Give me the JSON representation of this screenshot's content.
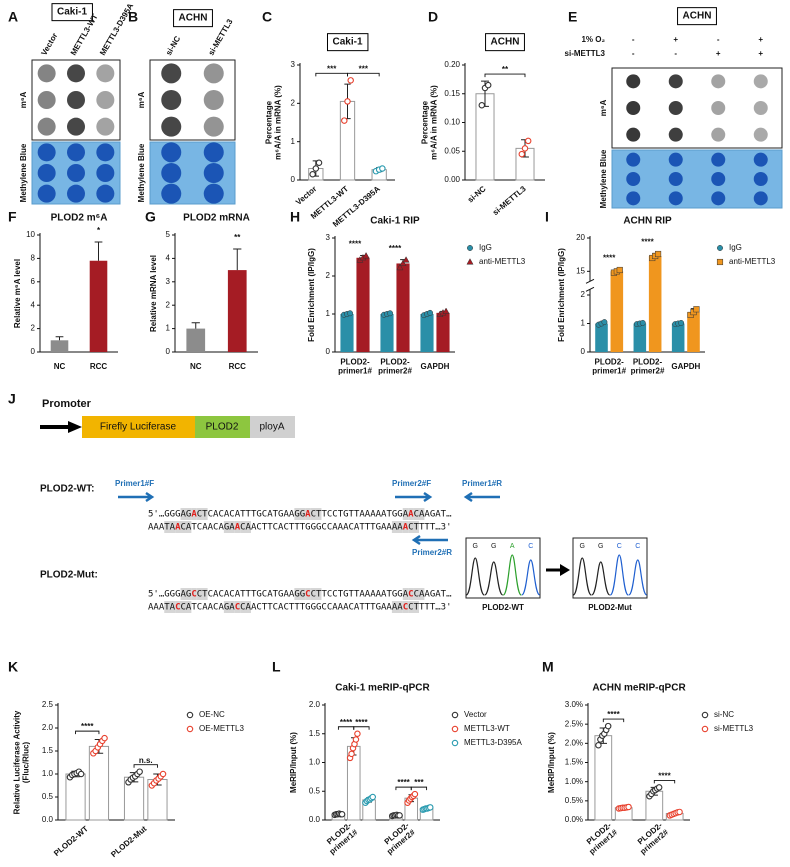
{
  "chart_data": [
    {
      "panel": "C",
      "type": "bar",
      "title": "Caki-1",
      "title_boxed": true,
      "ylabel": "Percentage\nm⁶A/A in mRNA (%)",
      "categories": [
        "Vector",
        "METTL3-WT",
        "METTL3-D395A"
      ],
      "values": [
        0.3,
        2.05,
        0.27
      ],
      "errors": [
        0.2,
        0.45,
        0.05
      ],
      "points": [
        [
          0.15,
          0.3,
          0.45
        ],
        [
          1.55,
          2.05,
          2.6
        ],
        [
          0.23,
          0.27,
          0.3
        ]
      ],
      "colors": [
        "#333333",
        "#e8412e",
        "#2a9bb0"
      ],
      "marker": "circle",
      "bar_style": "open",
      "ylim": [
        0,
        3
      ],
      "yticks": [
        0,
        1,
        2,
        3
      ],
      "xlabel_rotate": true,
      "significance": [
        {
          "label": "***",
          "groups": [
            0,
            1
          ]
        },
        {
          "label": "***",
          "groups": [
            1,
            2
          ]
        }
      ]
    },
    {
      "panel": "D",
      "type": "bar",
      "title": "ACHN",
      "title_boxed": true,
      "ylabel": "Percentage\nm⁶A/A in mRNA (%)",
      "categories": [
        "si-NC",
        "si-METTL3"
      ],
      "values": [
        0.15,
        0.055
      ],
      "errors": [
        0.022,
        0.015
      ],
      "points": [
        [
          0.13,
          0.16,
          0.165
        ],
        [
          0.045,
          0.055,
          0.068
        ]
      ],
      "colors": [
        "#333333",
        "#e8412e"
      ],
      "marker": "circle",
      "bar_style": "open",
      "ylim": [
        0,
        0.2
      ],
      "yticks": [
        {
          "value": 0,
          "label": "0.00"
        },
        {
          "value": 0.05,
          "label": "0.05"
        },
        {
          "value": 0.1,
          "label": "0.10"
        },
        {
          "value": 0.15,
          "label": "0.15"
        },
        {
          "value": 0.2,
          "label": "0.20"
        }
      ],
      "xlabel_rotate": true,
      "significance": [
        {
          "label": "**",
          "groups": [
            0,
            1
          ]
        }
      ]
    },
    {
      "panel": "F",
      "type": "bar",
      "title": "PLOD2 m⁶A",
      "ylabel": "Relative m⁶A level",
      "categories": [
        "NC",
        "RCC"
      ],
      "values": [
        1,
        7.8
      ],
      "errors": [
        0.3,
        1.6
      ],
      "colors": [
        "#8c8c8c",
        "#a51c24"
      ],
      "bar_style": "solid",
      "ylim": [
        0,
        10
      ],
      "yticks": [
        0,
        2,
        4,
        6,
        8,
        10
      ],
      "significance": [
        {
          "label": "*",
          "category": 1
        }
      ]
    },
    {
      "panel": "G",
      "type": "bar",
      "title": "PLOD2 mRNA",
      "ylabel": "Relative mRNA level",
      "categories": [
        "NC",
        "RCC"
      ],
      "values": [
        1,
        3.5
      ],
      "errors": [
        0.25,
        0.9
      ],
      "colors": [
        "#8c8c8c",
        "#a51c24"
      ],
      "bar_style": "solid",
      "ylim": [
        0,
        5
      ],
      "yticks": [
        0,
        1,
        2,
        3,
        4,
        5
      ],
      "significance": [
        {
          "label": "**",
          "category": 1
        }
      ]
    },
    {
      "panel": "H",
      "type": "bar",
      "title": "Caki-1 RIP",
      "ylabel": "Fold Enrichment (IP/IgG)",
      "categories": [
        "PLOD2-\nprimer1#",
        "PLOD2-\nprimer2#",
        "GAPDH"
      ],
      "bar_style": "solid",
      "legend": "upper right",
      "series": [
        {
          "name": "IgG",
          "color": "#2a8fa8",
          "marker": "circle",
          "values": [
            1,
            1,
            1
          ],
          "errors": [
            0.03,
            0.03,
            0.03
          ],
          "points": [
            [
              0.98,
              1,
              1.02
            ],
            [
              0.98,
              1,
              1.02
            ],
            [
              0.97,
              1,
              1.03
            ]
          ]
        },
        {
          "name": "anti-METTL3",
          "color": "#a51c24",
          "marker": "triangle",
          "values": [
            2.48,
            2.33,
            1.03
          ],
          "errors": [
            0.06,
            0.1,
            0.04
          ],
          "points": [
            [
              2.42,
              2.48,
              2.53
            ],
            [
              2.22,
              2.33,
              2.42
            ],
            [
              0.99,
              1.03,
              1.07
            ]
          ]
        }
      ],
      "ylim": [
        0,
        3
      ],
      "yticks": [
        0,
        1,
        2,
        3
      ],
      "significance": [
        {
          "label": "****",
          "category": 0
        },
        {
          "label": "****",
          "category": 1
        }
      ]
    },
    {
      "panel": "I",
      "type": "bar",
      "title": "ACHN RIP",
      "ylabel": "Fold Enrichment (IP/IgG)",
      "categories": [
        "PLOD2-\nprimer1#",
        "PLOD2-\nprimer2#",
        "GAPDH"
      ],
      "bar_style": "solid",
      "legend": "upper right",
      "series": [
        {
          "name": "IgG",
          "color": "#2a8fa8",
          "marker": "circle",
          "values": [
            1,
            1,
            1
          ],
          "errors": [
            0.05,
            0.03,
            0.03
          ],
          "points": [
            [
              0.96,
              1,
              1.05
            ],
            [
              0.98,
              1,
              1.02
            ],
            [
              0.98,
              1,
              1.02
            ]
          ]
        },
        {
          "name": "anti-METTL3",
          "color": "#f0961e",
          "marker": "square",
          "values": [
            15,
            17.3,
            1.4
          ],
          "errors": [
            0.3,
            0.4,
            0.12
          ],
          "points": [
            [
              14.8,
              15,
              15.2
            ],
            [
              17,
              17.3,
              17.6
            ],
            [
              1.3,
              1.4,
              1.5
            ]
          ]
        }
      ],
      "ylim": [
        0,
        20
      ],
      "ybreak": [
        2.2,
        13.5
      ],
      "yticks": [
        0,
        1,
        2,
        15,
        20
      ],
      "significance": [
        {
          "label": "****",
          "category": 0
        },
        {
          "label": "****",
          "category": 1
        }
      ]
    },
    {
      "panel": "K",
      "type": "bar",
      "ylabel": "Relative Luciferase Activity\n(Fluc/Rluc)",
      "categories": [
        "PLOD2-WT",
        "PLOD2-Mut"
      ],
      "bar_style": "open",
      "legend": "upper right",
      "xlabel_rotate": true,
      "series": [
        {
          "name": "OE-NC",
          "color": "#333333",
          "marker": "circle",
          "values": [
            1,
            0.93
          ],
          "errors": [
            0.06,
            0.1
          ],
          "points": [
            [
              0.93,
              0.98,
              1,
              1.02,
              1.05,
              1
            ],
            [
              0.82,
              0.88,
              0.92,
              0.95,
              1,
              1.05
            ]
          ]
        },
        {
          "name": "OE-METTL3",
          "color": "#e8412e",
          "marker": "circle",
          "values": [
            1.6,
            0.88
          ],
          "errors": [
            0.15,
            0.12
          ],
          "points": [
            [
              1.45,
              1.5,
              1.58,
              1.65,
              1.72,
              1.78
            ],
            [
              0.75,
              0.8,
              0.86,
              0.9,
              0.95,
              1
            ]
          ]
        }
      ],
      "ylim": [
        0,
        2.5
      ],
      "yticks": [
        {
          "value": 0,
          "label": "0.0"
        },
        0.5,
        {
          "value": 1,
          "label": "1.0"
        },
        1.5,
        {
          "value": 2,
          "label": "2.0"
        },
        2.5
      ],
      "significance": [
        {
          "label": "****",
          "category": 0,
          "series": [
            0,
            1
          ]
        },
        {
          "label": "n.s.",
          "category": 1,
          "series": [
            0,
            1
          ]
        }
      ]
    },
    {
      "panel": "L",
      "type": "bar",
      "title": "Caki-1 meRIP-qPCR",
      "ylabel": "MeRIP/Input (%)",
      "categories": [
        "PLOD2-\nprimer1#",
        "PLOD2-\nprimer2#"
      ],
      "bar_style": "open",
      "legend": "upper right",
      "xlabel_rotate": true,
      "series": [
        {
          "name": "Vector",
          "color": "#333333",
          "marker": "circle",
          "values": [
            0.1,
            0.08
          ],
          "errors": [
            0.01,
            0.01
          ],
          "points": [
            [
              0.09,
              0.1,
              0.1,
              0.11,
              0.1,
              0.1
            ],
            [
              0.07,
              0.08,
              0.08,
              0.09,
              0.08,
              0.08
            ]
          ]
        },
        {
          "name": "METTL3-WT",
          "color": "#e8412e",
          "marker": "circle",
          "values": [
            1.28,
            0.38
          ],
          "errors": [
            0.15,
            0.06
          ],
          "points": [
            [
              1.08,
              1.15,
              1.25,
              1.32,
              1.4,
              1.5
            ],
            [
              0.3,
              0.34,
              0.37,
              0.4,
              0.42,
              0.45
            ]
          ]
        },
        {
          "name": "METTL3-D395A",
          "color": "#2a9bb0",
          "marker": "circle",
          "values": [
            0.35,
            0.2
          ],
          "errors": [
            0.04,
            0.02
          ],
          "points": [
            [
              0.3,
              0.33,
              0.35,
              0.36,
              0.38,
              0.4
            ],
            [
              0.18,
              0.19,
              0.2,
              0.2,
              0.21,
              0.22
            ]
          ]
        }
      ],
      "ylim": [
        0,
        2
      ],
      "yticks": [
        {
          "value": 0,
          "label": "0.0"
        },
        0.5,
        {
          "value": 1,
          "label": "1.0"
        },
        1.5,
        {
          "value": 2,
          "label": "2.0"
        }
      ],
      "significance": [
        {
          "label": "****",
          "category": 0,
          "series": [
            0,
            1
          ]
        },
        {
          "label": "****",
          "category": 0,
          "series": [
            1,
            2
          ]
        },
        {
          "label": "****",
          "category": 1,
          "series": [
            0,
            1
          ]
        },
        {
          "label": "***",
          "category": 1,
          "series": [
            1,
            2
          ]
        }
      ]
    },
    {
      "panel": "M",
      "type": "bar",
      "title": "ACHN meRIP-qPCR",
      "ylabel": "MeRIP/Input (%)",
      "categories": [
        "PLOD2-\nprimer1#",
        "PLOD2-\nprimer2#"
      ],
      "bar_style": "open",
      "legend": "upper right",
      "xlabel_rotate": true,
      "series": [
        {
          "name": "si-NC",
          "color": "#333333",
          "marker": "circle",
          "values": [
            2.2,
            0.75
          ],
          "errors": [
            0.2,
            0.1
          ],
          "points": [
            [
              1.95,
              2.1,
              2.2,
              2.25,
              2.35,
              2.45
            ],
            [
              0.62,
              0.68,
              0.75,
              0.78,
              0.82,
              0.85
            ]
          ]
        },
        {
          "name": "si-METTL3",
          "color": "#e8412e",
          "marker": "circle",
          "values": [
            0.32,
            0.17
          ],
          "errors": [
            0.02,
            0.04
          ],
          "points": [
            [
              0.3,
              0.31,
              0.32,
              0.32,
              0.33,
              0.34
            ],
            [
              0.12,
              0.14,
              0.16,
              0.18,
              0.2,
              0.21
            ]
          ]
        }
      ],
      "ylim": [
        0,
        3
      ],
      "yticks": [
        {
          "value": 0,
          "label": "0.0%"
        },
        {
          "value": 0.5,
          "label": "0.5%"
        },
        {
          "value": 1,
          "label": "1.0%"
        },
        {
          "value": 1.5,
          "label": "1.5%"
        },
        {
          "value": 2,
          "label": "2.0%"
        },
        {
          "value": 2.5,
          "label": "2.5%"
        },
        {
          "value": 3,
          "label": "3.0%"
        }
      ],
      "significance": [
        {
          "label": "****",
          "category": 0,
          "series": [
            0,
            1
          ]
        },
        {
          "label": "****",
          "category": 1,
          "series": [
            0,
            1
          ]
        }
      ]
    }
  ],
  "blots": [
    {
      "panel": "A",
      "title": "Caki-1",
      "lanes": [
        "Vector",
        "METTL3-WT",
        "METTL3-D395A"
      ],
      "rows": [
        "m⁶A",
        "Methylene Blue"
      ]
    },
    {
      "panel": "B",
      "title": "ACHN",
      "lanes": [
        "si-NC",
        "si-METTL3"
      ],
      "rows": [
        "m⁶A",
        "Methylene Blue"
      ]
    },
    {
      "panel": "E",
      "title": "ACHN",
      "conditions": [
        {
          "name": "1% O₂",
          "signs": [
            "-",
            "+",
            "-",
            "+"
          ]
        },
        {
          "name": "si-METTL3",
          "signs": [
            "-",
            "-",
            "+",
            "+"
          ]
        }
      ],
      "rows": [
        "m⁶A",
        "Methylene Blue"
      ]
    }
  ],
  "construct": {
    "panel": "J",
    "promoter": "Promoter",
    "elements": [
      "Firefly Luciferase",
      "PLOD2",
      "ployA"
    ],
    "primers": [
      "Primer1#F",
      "Primer2#F",
      "Primer1#R",
      "Primer2#R"
    ],
    "wt": {
      "label": "PLOD2-WT:",
      "lines": [
        [
          [
            "5'…GGG",
            "n"
          ],
          [
            "AG",
            "h"
          ],
          [
            "A",
            "r"
          ],
          [
            "CT",
            "h"
          ],
          [
            "CACACATTTGCATGAA",
            "n"
          ],
          [
            "GG",
            "h"
          ],
          [
            "A",
            "r"
          ],
          [
            "CT",
            "h"
          ],
          [
            "TCCTGTTAAAAATGG",
            "n"
          ],
          [
            "A",
            "h"
          ],
          [
            "A",
            "r"
          ],
          [
            "CA",
            "h"
          ],
          [
            "AGAT…",
            "n"
          ]
        ],
        [
          [
            "AAA",
            "n"
          ],
          [
            "TA",
            "h"
          ],
          [
            "A",
            "r"
          ],
          [
            "CA",
            "h"
          ],
          [
            "TCAACA",
            "n"
          ],
          [
            "GA",
            "h"
          ],
          [
            "A",
            "r"
          ],
          [
            "CA",
            "h"
          ],
          [
            "ACTTCACTTTGGGCCAAACATTTGAA",
            "n"
          ],
          [
            "AA",
            "h"
          ],
          [
            "A",
            "r"
          ],
          [
            "CT",
            "h"
          ],
          [
            "TTT…3'",
            "n"
          ]
        ]
      ]
    },
    "mut": {
      "label": "PLOD2-Mut:",
      "lines": [
        [
          [
            "5'…GGG",
            "n"
          ],
          [
            "AG",
            "h"
          ],
          [
            "C",
            "r"
          ],
          [
            "CT",
            "h"
          ],
          [
            "CACACATTTGCATGAA",
            "n"
          ],
          [
            "GG",
            "h"
          ],
          [
            "C",
            "r"
          ],
          [
            "CT",
            "h"
          ],
          [
            "TCCTGTTAAAAATGG",
            "n"
          ],
          [
            "A",
            "h"
          ],
          [
            "C",
            "r"
          ],
          [
            "CA",
            "h"
          ],
          [
            "AGAT…",
            "n"
          ]
        ],
        [
          [
            "AAA",
            "n"
          ],
          [
            "TA",
            "h"
          ],
          [
            "C",
            "r"
          ],
          [
            "CA",
            "h"
          ],
          [
            "TCAACA",
            "n"
          ],
          [
            "GA",
            "h"
          ],
          [
            "C",
            "r"
          ],
          [
            "CA",
            "h"
          ],
          [
            "ACTTCACTTTGGGCCAAACATTTGAA",
            "n"
          ],
          [
            "AA",
            "h"
          ],
          [
            "C",
            "r"
          ],
          [
            "CT",
            "h"
          ],
          [
            "TTT…3'",
            "n"
          ]
        ]
      ]
    },
    "chromatograms": [
      {
        "label": "PLOD2-WT",
        "bases": [
          "G",
          "G",
          "A",
          "C"
        ]
      },
      {
        "label": "PLOD2-Mut",
        "bases": [
          "G",
          "G",
          "C",
          "C"
        ]
      }
    ]
  }
}
